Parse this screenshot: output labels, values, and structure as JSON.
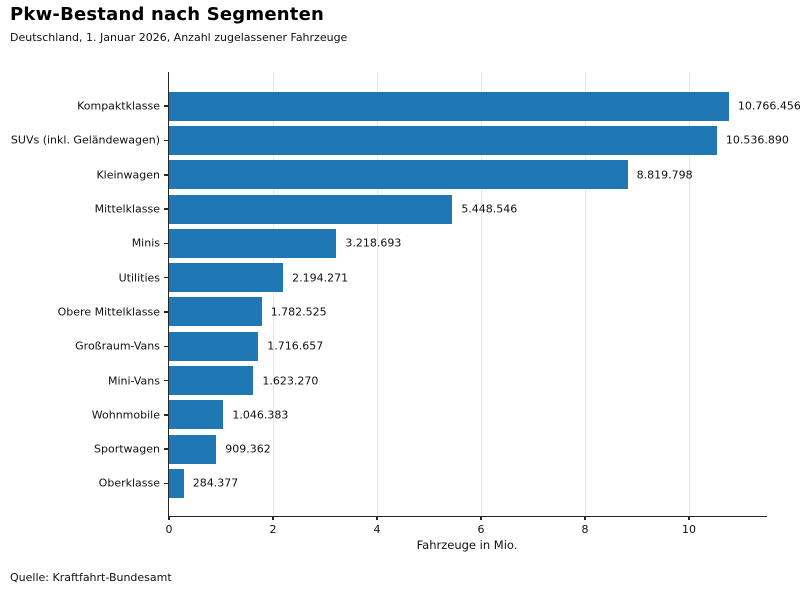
{
  "chart_data": {
    "type": "bar",
    "orientation": "horizontal",
    "title": "Pkw-Bestand nach Segmenten",
    "subtitle": "Deutschland, 1. Januar 2026, Anzahl zugelassener Fahrzeuge",
    "source": "Quelle: Kraftfahrt-Bundesamt",
    "xlabel": "Fahrzeuge in Mio.",
    "categories": [
      "Kompaktklasse",
      "SUVs (inkl. Geländewagen)",
      "Kleinwagen",
      "Mittelklasse",
      "Minis",
      "Utilities",
      "Obere Mittelklasse",
      "Großraum-Vans",
      "Mini-Vans",
      "Wohnmobile",
      "Sportwagen",
      "Oberklasse"
    ],
    "values": [
      10766456,
      10536890,
      8819798,
      5448546,
      3218693,
      2194271,
      1782525,
      1716657,
      1623270,
      1046383,
      909362,
      284377
    ],
    "value_labels": [
      "10.766.456",
      "10.536.890",
      "8.819.798",
      "5.448.546",
      "3.218.693",
      "2.194.271",
      "1.782.525",
      "1.716.657",
      "1.623.270",
      "1.046.383",
      "909.362",
      "284.377"
    ],
    "x_ticks": [
      0,
      2,
      4,
      6,
      8,
      10
    ],
    "x_tick_labels": [
      "0",
      "2",
      "4",
      "6",
      "8",
      "10"
    ],
    "xlim": [
      0,
      11.5
    ],
    "bar_color": "#1f77b4",
    "grid": true,
    "legend": null
  }
}
